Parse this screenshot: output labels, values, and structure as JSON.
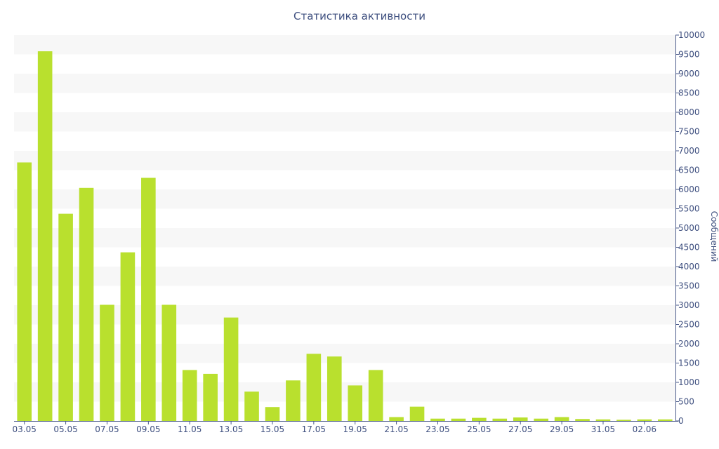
{
  "chart_data": {
    "type": "bar",
    "title": "Статистика активности",
    "xlabel": "",
    "ylabel": "Сообщений",
    "ylim": [
      0,
      10000
    ],
    "y_axis_side": "right",
    "y_ticks": [
      0,
      500,
      1000,
      1500,
      2000,
      2500,
      3000,
      3500,
      4000,
      4500,
      5000,
      5500,
      6000,
      6500,
      7000,
      7500,
      8000,
      8500,
      9000,
      9500,
      10000
    ],
    "x_tick_labels": [
      "03.05",
      "05.05",
      "07.05",
      "09.05",
      "11.05",
      "13.05",
      "15.05",
      "17.05",
      "19.05",
      "21.05",
      "23.05",
      "25.05",
      "27.05",
      "29.05",
      "31.05",
      "02.06"
    ],
    "categories": [
      "03.05",
      "04.05",
      "05.05",
      "06.05",
      "07.05",
      "08.05",
      "09.05",
      "10.05",
      "11.05",
      "12.05",
      "13.05",
      "14.05",
      "15.05",
      "16.05",
      "17.05",
      "18.05",
      "19.05",
      "20.05",
      "21.05",
      "22.05",
      "23.05",
      "24.05",
      "25.05",
      "26.05",
      "27.05",
      "28.05",
      "29.05",
      "30.05",
      "31.05",
      "01.06",
      "02.06",
      "03.06"
    ],
    "values": [
      6700,
      9580,
      5370,
      6040,
      3010,
      4370,
      6300,
      3010,
      1320,
      1220,
      2680,
      760,
      360,
      1050,
      1740,
      1670,
      920,
      1320,
      100,
      370,
      60,
      60,
      80,
      60,
      90,
      60,
      100,
      50,
      40,
      30,
      40,
      40
    ],
    "grid": "horizontal bands",
    "legend": "none",
    "colors": {
      "bar": "#b9e02e",
      "axis": "#4a5a8a",
      "text": "#3e4f7f",
      "band": "#f7f7f7"
    }
  }
}
